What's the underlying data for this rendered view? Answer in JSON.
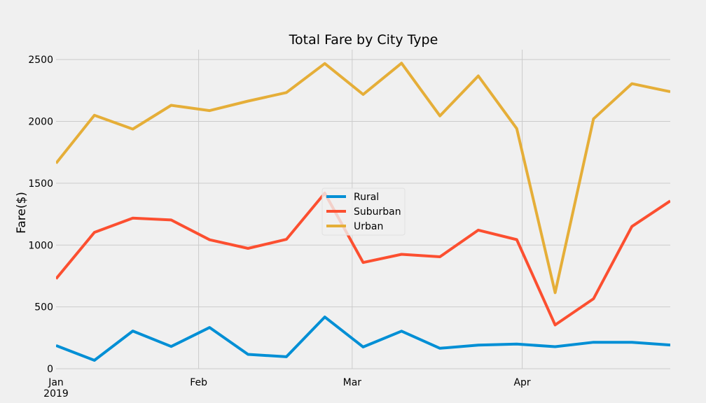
{
  "chart_data": {
    "type": "line",
    "title": "Total Fare by City Type",
    "xlabel": "",
    "ylabel": "Fare($)",
    "x": [
      "2019-01-06",
      "2019-01-13",
      "2019-01-20",
      "2019-01-27",
      "2019-02-03",
      "2019-02-10",
      "2019-02-17",
      "2019-02-24",
      "2019-03-03",
      "2019-03-10",
      "2019-03-17",
      "2019-03-24",
      "2019-03-31",
      "2019-04-07",
      "2019-04-14",
      "2019-04-21",
      "2019-04-28"
    ],
    "x_tick_labels": [
      "Jan",
      "Feb",
      "Mar",
      "Apr"
    ],
    "x_tick_sublabel": "2019",
    "ylim": [
      0,
      2580
    ],
    "y_ticks": [
      0,
      500,
      1000,
      1500,
      2000,
      2500
    ],
    "grid": true,
    "legend_position": "center",
    "series": [
      {
        "name": "Rural",
        "color": "#008fd5",
        "values": [
          187,
          68,
          305,
          180,
          333,
          116,
          97,
          418,
          176,
          304,
          165,
          191,
          199,
          178,
          214,
          214,
          192
        ]
      },
      {
        "name": "Suburban",
        "color": "#fc4f30",
        "values": [
          727,
          1103,
          1218,
          1203,
          1043,
          973,
          1046,
          1420,
          859,
          925,
          905,
          1121,
          1044,
          354,
          566,
          1150,
          1357
        ]
      },
      {
        "name": "Urban",
        "color": "#e5ae38",
        "values": [
          1661,
          2050,
          1938,
          2130,
          2087,
          2164,
          2233,
          2468,
          2218,
          2471,
          2045,
          2368,
          1942,
          615,
          2021,
          2305,
          2240
        ]
      }
    ]
  }
}
